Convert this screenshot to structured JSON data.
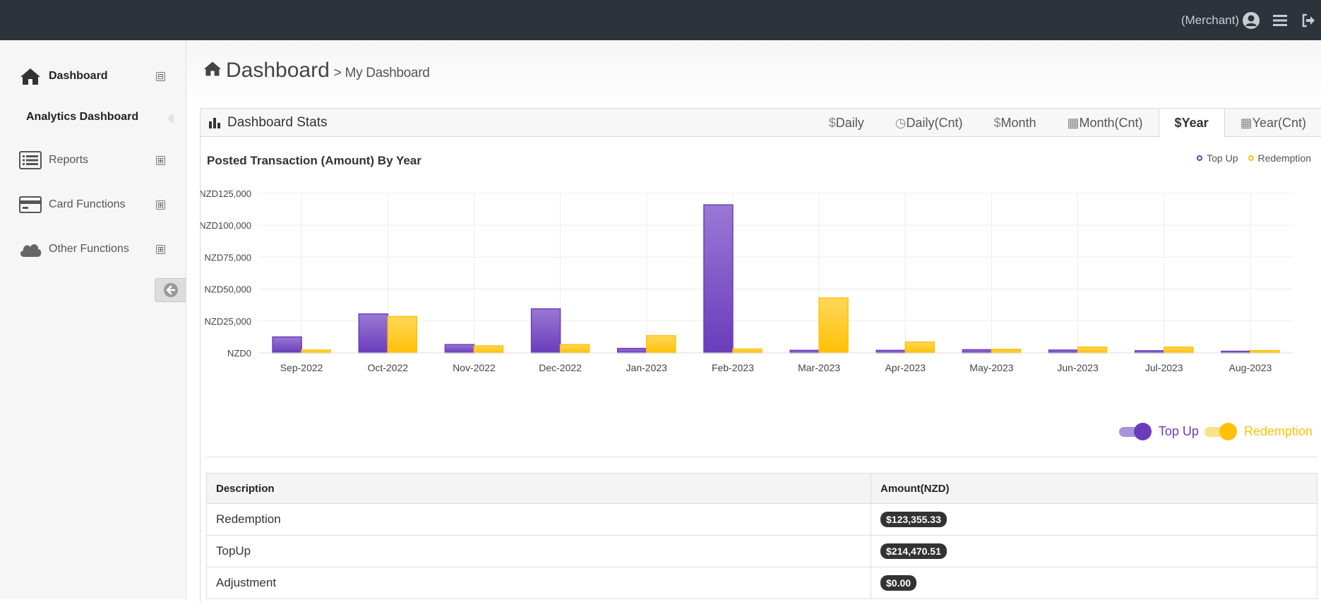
{
  "topbar": {
    "role_label": "(Merchant)"
  },
  "sidebar": {
    "items": [
      {
        "label": "Dashboard",
        "toggle": "⊟"
      },
      {
        "label": "Reports",
        "toggle": "⊞"
      },
      {
        "label": "Card Functions",
        "toggle": "⊞"
      },
      {
        "label": "Other Functions",
        "toggle": "⊞"
      }
    ],
    "subitem": "Analytics Dashboard"
  },
  "page": {
    "title": "Dashboard",
    "breadcrumb": "> My Dashboard"
  },
  "panel": {
    "title": "Dashboard Stats",
    "tabs": [
      {
        "glyph": "$",
        "label": "Daily"
      },
      {
        "glyph": "◷",
        "label": "Daily(Cnt)"
      },
      {
        "glyph": "$",
        "label": "Month"
      },
      {
        "glyph": "▦",
        "label": "Month(Cnt)"
      },
      {
        "glyph": "$",
        "label": "Year"
      },
      {
        "glyph": "▦",
        "label": "Year(Cnt)"
      }
    ],
    "active_tab": 4
  },
  "colors": {
    "top_up": "#6a3cbc",
    "redemption": "#ffc107",
    "topbar": "#2c333b"
  },
  "chart_data": {
    "type": "bar",
    "title": "Posted Transaction (Amount) By Year",
    "categories": [
      "Sep-2022",
      "Oct-2022",
      "Nov-2022",
      "Dec-2022",
      "Jan-2023",
      "Feb-2023",
      "Mar-2023",
      "Apr-2023",
      "May-2023",
      "Jun-2023",
      "Jul-2023",
      "Aug-2023"
    ],
    "series": [
      {
        "name": "Top Up",
        "values": [
          12500,
          30500,
          6500,
          34500,
          3500,
          116000,
          2000,
          2000,
          2500,
          2200,
          1700,
          1300
        ]
      },
      {
        "name": "Redemption",
        "values": [
          2200,
          28500,
          5500,
          6500,
          13500,
          3000,
          43000,
          8500,
          2800,
          4500,
          4500,
          1800
        ]
      }
    ],
    "ylim": [
      0,
      125000
    ],
    "yticks": [
      "NZD0",
      "NZD25,000",
      "NZD50,000",
      "NZD75,000",
      "NZD100,000",
      "NZD125,000"
    ],
    "grid": true,
    "legend": "top-right"
  },
  "table": {
    "headers": [
      "Description",
      "Amount(NZD)"
    ],
    "rows": [
      {
        "desc": "Redemption",
        "amount": "$123,355.33"
      },
      {
        "desc": "TopUp",
        "amount": "$214,470.51"
      },
      {
        "desc": "Adjustment",
        "amount": "$0.00"
      }
    ]
  }
}
